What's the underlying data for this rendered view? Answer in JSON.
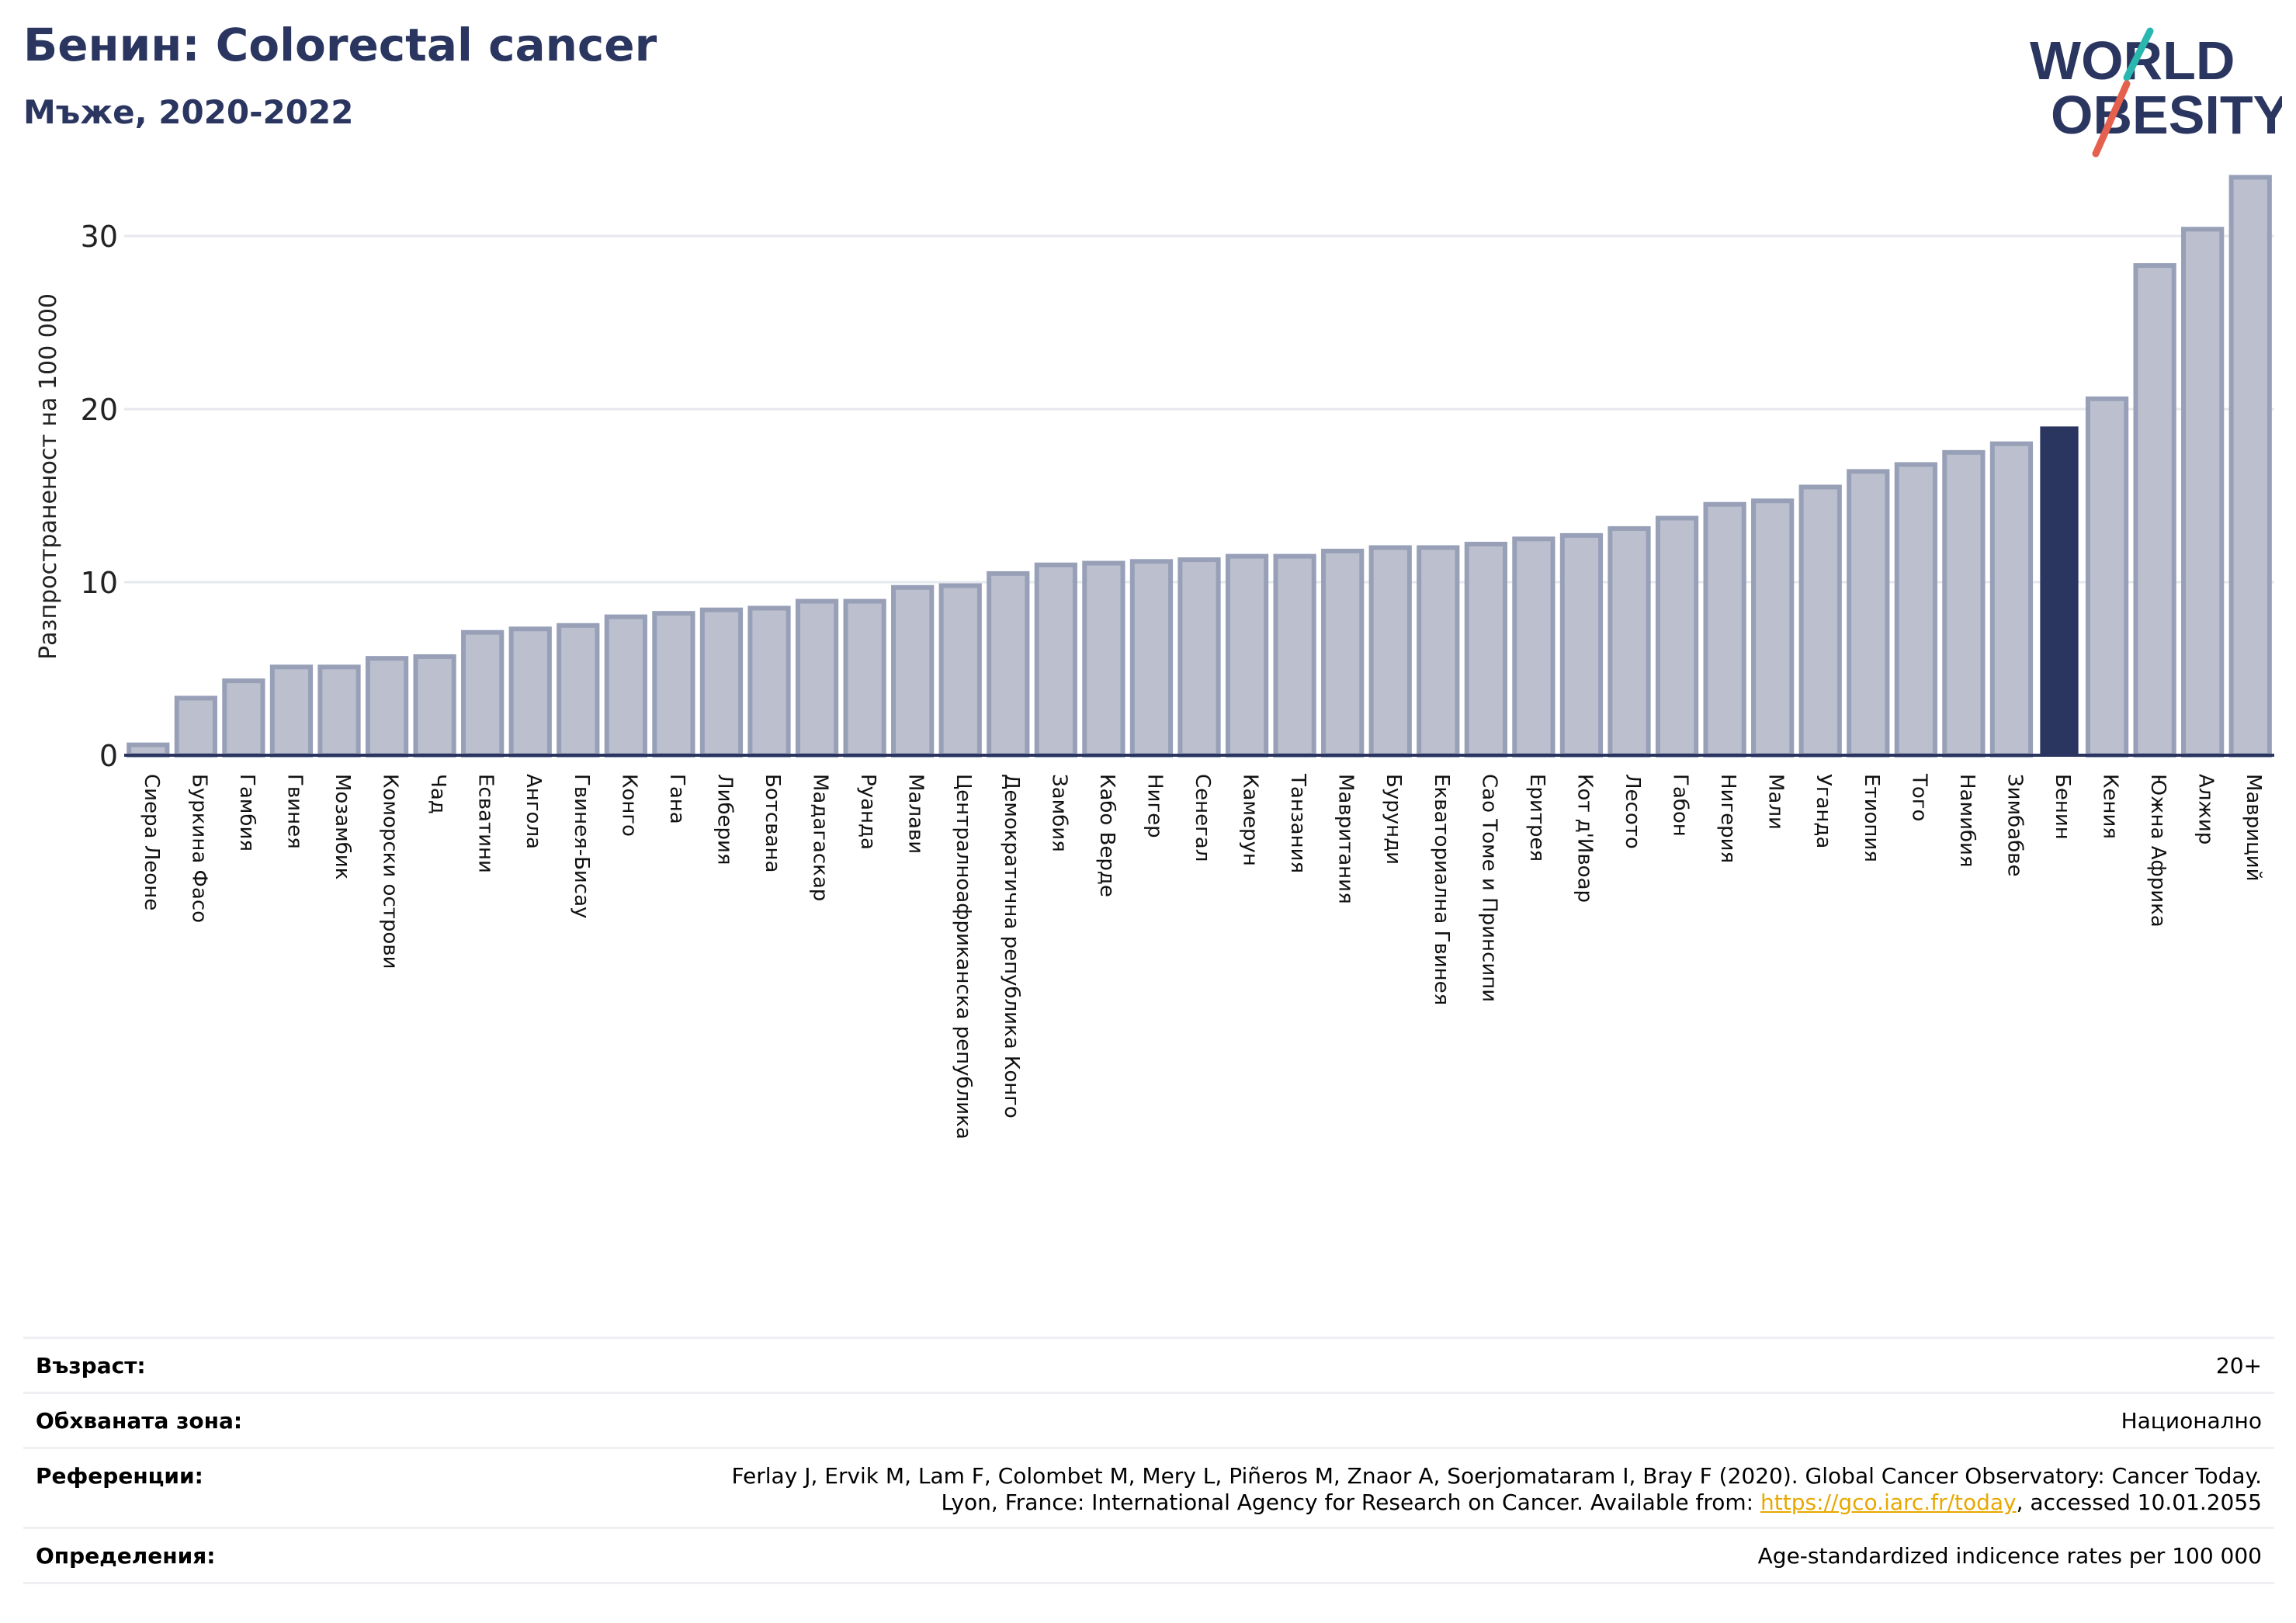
{
  "header": {
    "title": "Бенин: Colorectal cancer",
    "subtitle": "Мъже, 2020-2022"
  },
  "logo": {
    "line1": "WORLD",
    "line2": "OBESITY"
  },
  "colors": {
    "highlight_bar": "#2a3560",
    "other_bar_fill": "#bcc0ce",
    "other_bar_edge": "#98a0b8",
    "title": "#2a3560",
    "logo_teal": "#2ab7b0",
    "logo_red": "#e5604d",
    "link": "#e8a800"
  },
  "chart_data": {
    "type": "bar",
    "ylabel": "Разпространеност  на 100 000",
    "ylim": [
      0,
      34
    ],
    "yticks": [
      0,
      10,
      20,
      30
    ],
    "grid": true,
    "highlight": "Бенин",
    "categories": [
      "Сиера Леоне",
      "Буркина Фасо",
      "Гамбия",
      "Гвинея",
      "Мозамбик",
      "Коморски острови",
      "Чад",
      "Есватини",
      "Ангола",
      "Гвинея-Бисау",
      "Конго",
      "Гана",
      "Либерия",
      "Ботсвана",
      "Мадагаскар",
      "Руанда",
      "Малави",
      "Централноафриканска република",
      "Демократична република Конго",
      "Замбия",
      "Кабо Верде",
      "Нигер",
      "Сенегал",
      "Камерун",
      "Танзания",
      "Мавритания",
      "Бурунди",
      "Екваториална Гвинея",
      "Сао Томе и Принсипи",
      "Еритрея",
      "Кот д'Ивоар",
      "Лесото",
      "Габон",
      "Нигерия",
      "Мали",
      "Уганда",
      "Етиопия",
      "Того",
      "Намибия",
      "Зимбабве",
      "Бенин",
      "Кения",
      "Южна Африка",
      "Алжир",
      "Мавриций"
    ],
    "values": [
      0.6,
      3.3,
      4.3,
      5.1,
      5.1,
      5.6,
      5.7,
      7.1,
      7.3,
      7.5,
      8.0,
      8.2,
      8.4,
      8.5,
      8.9,
      8.9,
      9.7,
      9.8,
      10.5,
      11.0,
      11.1,
      11.2,
      11.3,
      11.5,
      11.5,
      11.8,
      12.0,
      12.0,
      12.2,
      12.5,
      12.7,
      13.1,
      13.7,
      14.5,
      14.7,
      15.5,
      16.4,
      16.8,
      17.5,
      18.0,
      19.0,
      20.6,
      28.3,
      30.4,
      33.4
    ]
  },
  "info": {
    "age_label": "Възраст:",
    "age_value": "20+",
    "coverage_label": "Обхваната зона:",
    "coverage_value": "Национално",
    "references_label": "Референции:",
    "references_line1": "Ferlay J, Ervik M, Lam F, Colombet M, Mery L, Piñeros M, Znaor A, Soerjomataram I, Bray F (2020). Global Cancer Observatory: Cancer Today.",
    "references_line2_prefix": "Lyon, France: International Agency for Research on Cancer. Available from: ",
    "references_link": "https://gco.iarc.fr/today",
    "references_line2_suffix": ", accessed 10.01.2055",
    "definitions_label": "Определения:",
    "definitions_value": "Age-standardized indicence rates per 100 000"
  }
}
